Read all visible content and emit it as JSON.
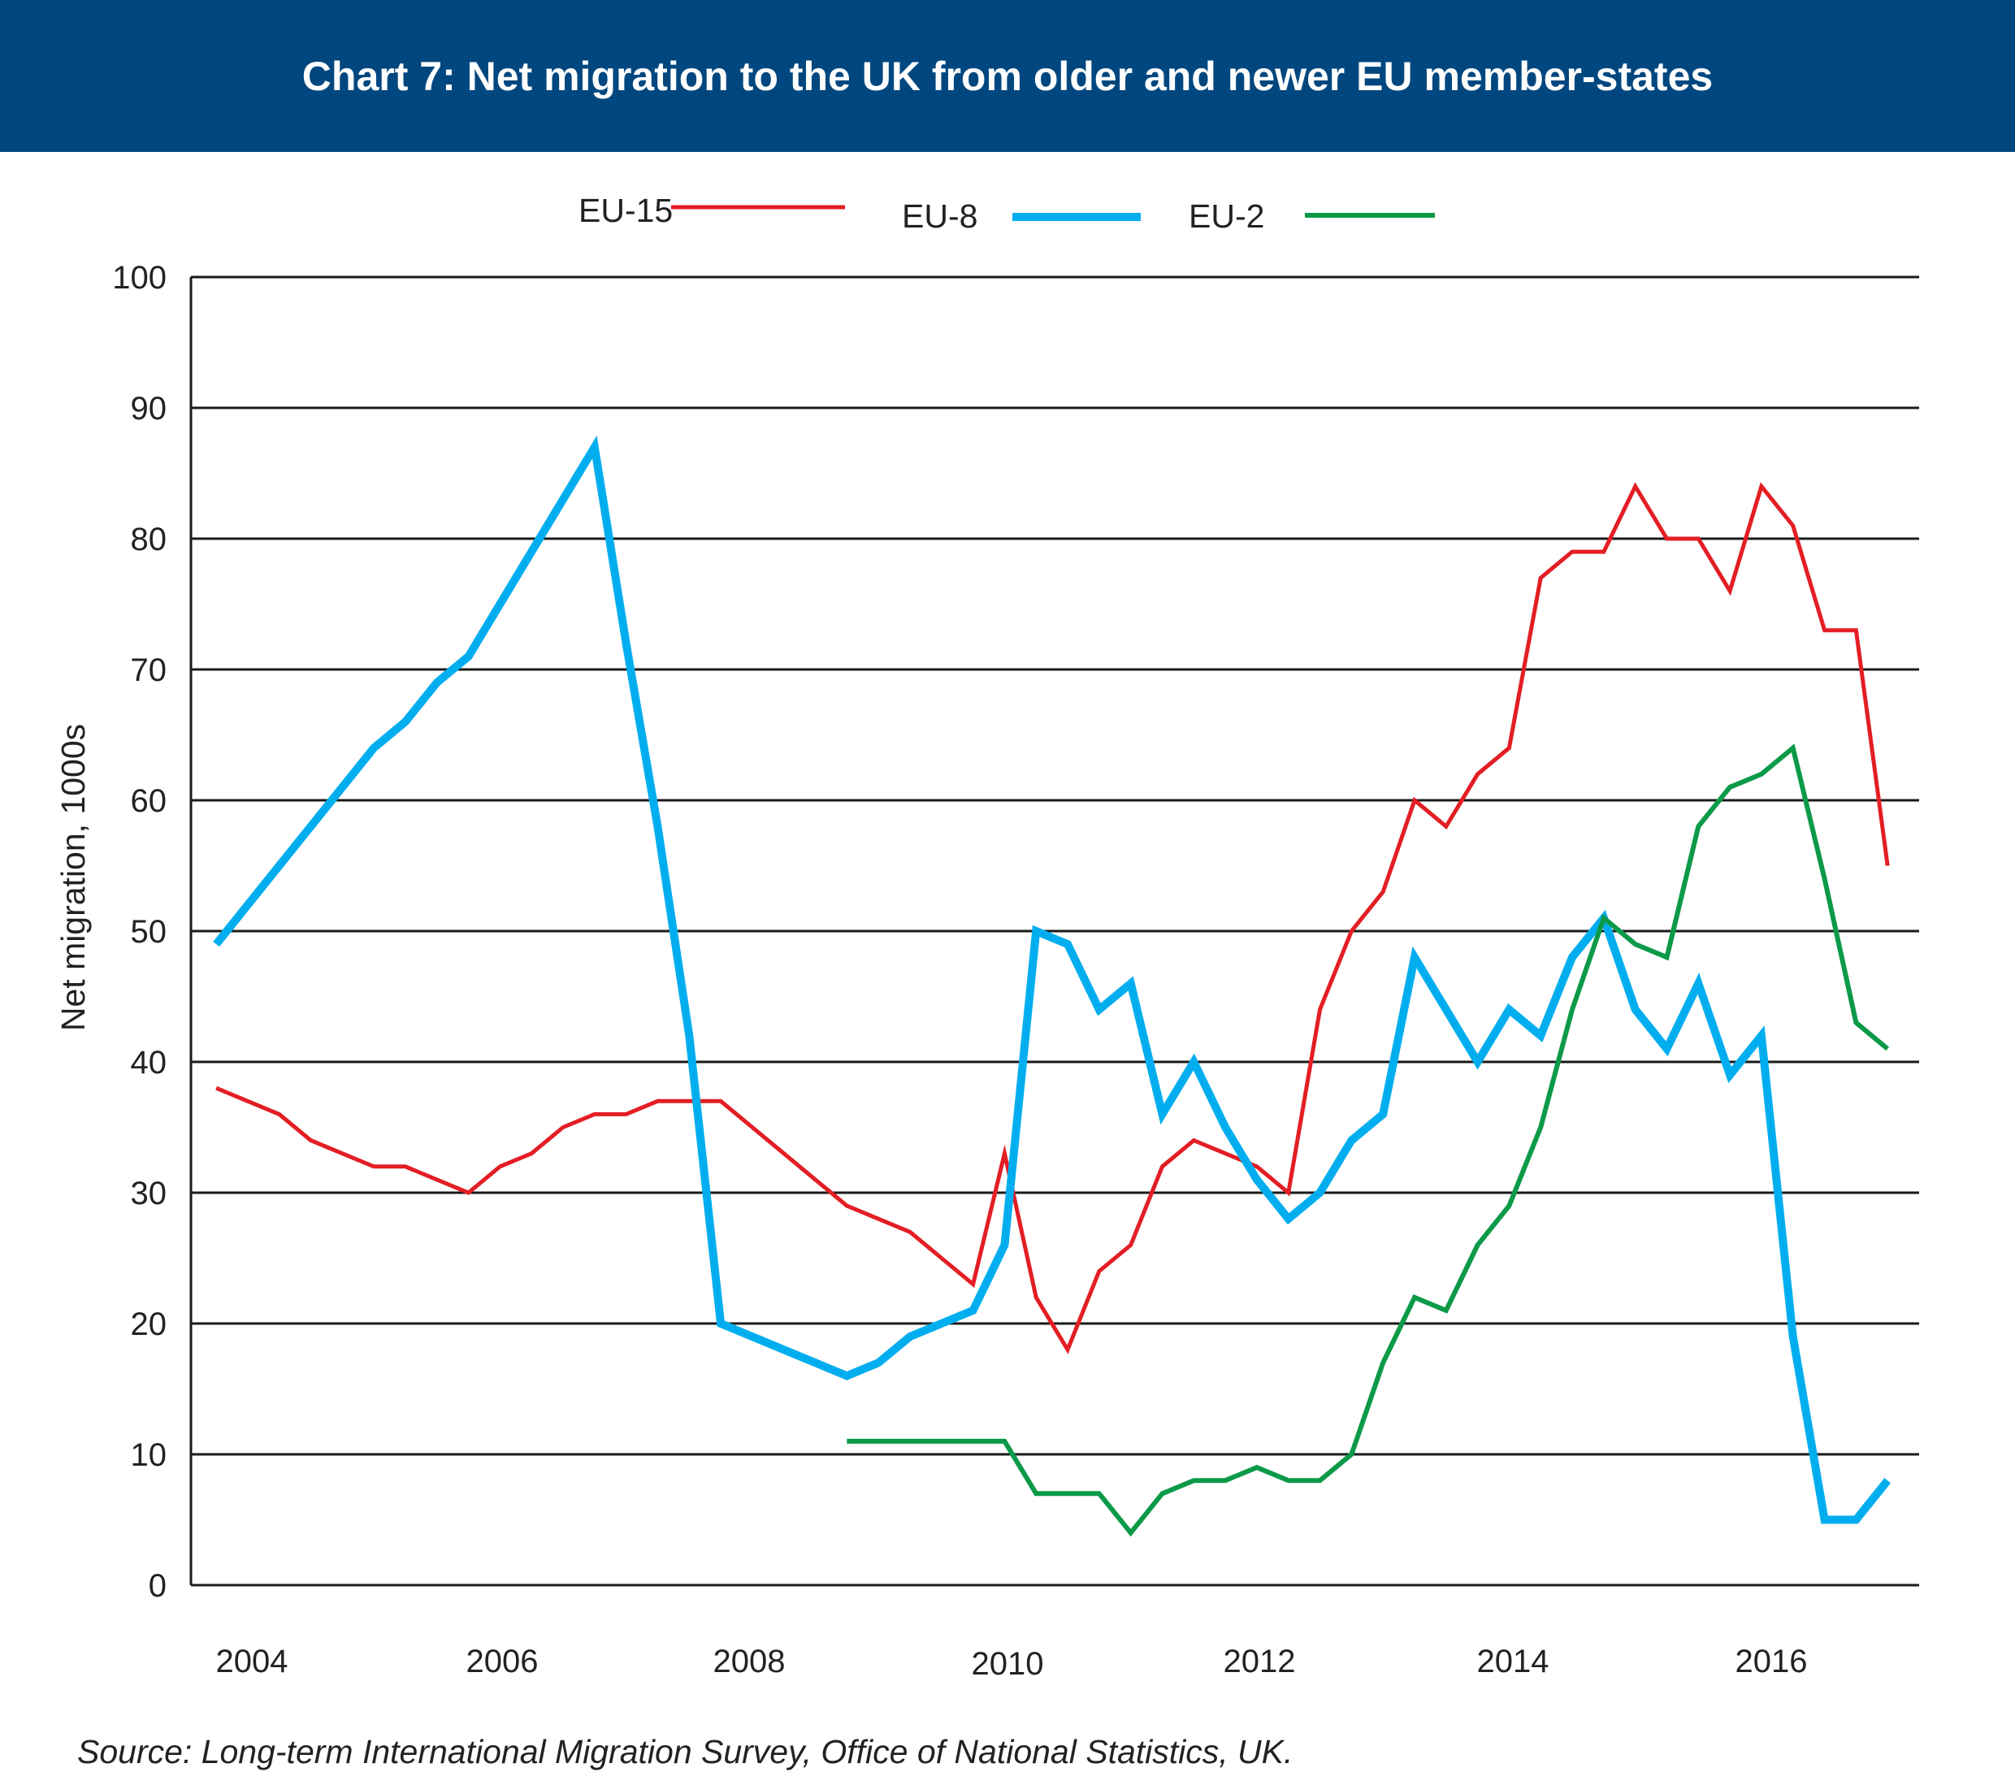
{
  "chart_data": {
    "type": "line",
    "title": "Chart 7: Net migration to the UK from older and newer EU member-states",
    "ylabel": "Net migration, 1000s",
    "xlabel": "",
    "ylim": [
      0,
      100
    ],
    "yticks": [
      0,
      10,
      20,
      30,
      40,
      50,
      60,
      70,
      80,
      90,
      100
    ],
    "xlim": [
      2003.55,
      2017.25
    ],
    "xtick_labels": [
      "2004",
      "2006",
      "2008",
      "2010",
      "2012",
      "2014",
      "2016"
    ],
    "grid": "horizontal",
    "legend_position": "top",
    "source": "Source: Long-term International Migration Survey, Office of National Statistics, UK.",
    "series": [
      {
        "name": "EU-15",
        "color": "#e31e24",
        "x": [
          2003.75,
          2004.0,
          2004.25,
          2004.5,
          2004.75,
          2005.0,
          2005.25,
          2005.5,
          2005.75,
          2006.0,
          2006.25,
          2006.5,
          2006.75,
          2007.0,
          2007.25,
          2007.5,
          2007.75,
          2008.0,
          2008.25,
          2008.5,
          2008.75,
          2009.0,
          2009.25,
          2009.5,
          2009.75,
          2010.0,
          2010.25,
          2010.5,
          2010.75,
          2011.0,
          2011.25,
          2011.5,
          2011.75,
          2012.0,
          2012.25,
          2012.5,
          2012.75,
          2013.0,
          2013.25,
          2013.5,
          2013.75,
          2014.0,
          2014.25,
          2014.5,
          2014.75,
          2015.0,
          2015.25,
          2015.5,
          2015.75,
          2016.0,
          2016.25,
          2016.5,
          2016.75,
          2017.0
        ],
        "values": [
          38,
          37,
          36,
          34,
          33,
          32,
          32,
          31,
          30,
          32,
          33,
          35,
          36,
          36,
          37,
          37,
          37,
          35,
          33,
          31,
          29,
          28,
          27,
          25,
          23,
          33,
          22,
          18,
          24,
          26,
          32,
          34,
          33,
          32,
          30,
          44,
          50,
          53,
          60,
          58,
          62,
          64,
          77,
          79,
          79,
          84,
          80,
          80,
          76,
          84,
          81,
          73,
          73,
          55
        ]
      },
      {
        "name": "EU-8",
        "color": "#00aeef",
        "x": [
          2003.75,
          2004.0,
          2004.25,
          2004.5,
          2004.75,
          2005.0,
          2005.25,
          2005.5,
          2005.75,
          2006.0,
          2006.25,
          2006.5,
          2006.75,
          2007.0,
          2007.25,
          2007.5,
          2007.75,
          2008.0,
          2008.25,
          2008.5,
          2008.75,
          2009.0,
          2009.25,
          2009.5,
          2009.75,
          2010.0,
          2010.25,
          2010.5,
          2010.75,
          2011.0,
          2011.25,
          2011.5,
          2011.75,
          2012.0,
          2012.25,
          2012.5,
          2012.75,
          2013.0,
          2013.25,
          2013.5,
          2013.75,
          2014.0,
          2014.25,
          2014.5,
          2014.75,
          2015.0,
          2015.25,
          2015.5,
          2015.75,
          2016.0,
          2016.25,
          2016.5,
          2016.75,
          2017.0
        ],
        "values": [
          49,
          52,
          55,
          58,
          61,
          64,
          66,
          69,
          71,
          75,
          79,
          83,
          87,
          72,
          58,
          42,
          20,
          19,
          18,
          17,
          16,
          17,
          19,
          20,
          21,
          26,
          50,
          49,
          44,
          46,
          36,
          40,
          35,
          31,
          28,
          30,
          34,
          36,
          48,
          44,
          40,
          44,
          42,
          48,
          51,
          44,
          41,
          46,
          39,
          42,
          19,
          5,
          5,
          8
        ]
      },
      {
        "name": "EU-2",
        "color": "#0c9a48",
        "x": [
          2008.75,
          2009.0,
          2009.25,
          2009.5,
          2009.75,
          2010.0,
          2010.25,
          2010.5,
          2010.75,
          2011.0,
          2011.25,
          2011.5,
          2011.75,
          2012.0,
          2012.25,
          2012.5,
          2012.75,
          2013.0,
          2013.25,
          2013.5,
          2013.75,
          2014.0,
          2014.25,
          2014.5,
          2014.75,
          2015.0,
          2015.25,
          2015.5,
          2015.75,
          2016.0,
          2016.25,
          2016.5,
          2016.75,
          2017.0
        ],
        "values": [
          11,
          11,
          11,
          11,
          11,
          11,
          7,
          7,
          7,
          4,
          7,
          8,
          8,
          9,
          8,
          8,
          10,
          17,
          22,
          21,
          26,
          29,
          35,
          44,
          51,
          49,
          48,
          58,
          61,
          62,
          64,
          54,
          43,
          41
        ]
      }
    ]
  }
}
